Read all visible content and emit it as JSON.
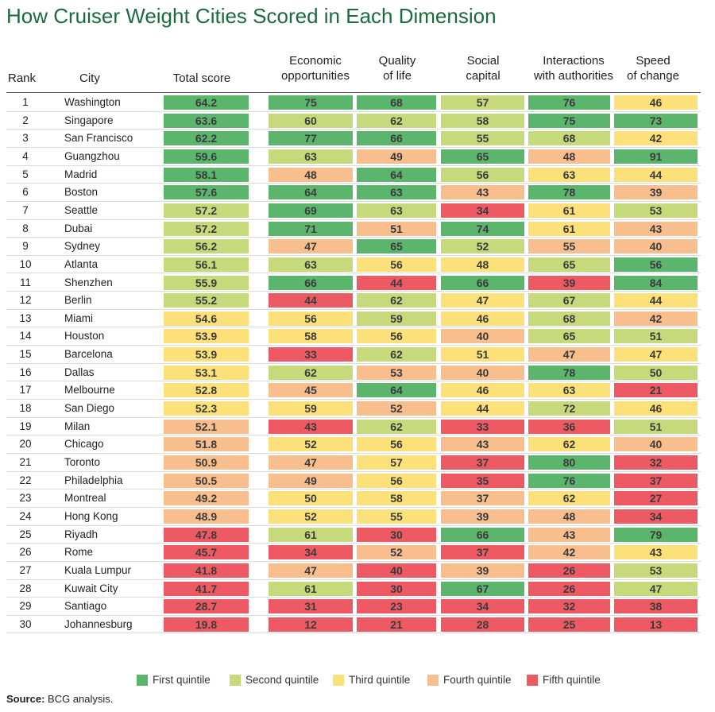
{
  "chart_data": {
    "type": "table",
    "title": "How Cruiser Weight Cities Scored in Each Dimension",
    "columns": [
      {
        "key": "rank",
        "label": [
          "Rank"
        ]
      },
      {
        "key": "city",
        "label": [
          "City"
        ]
      },
      {
        "key": "total",
        "label": [
          "Total score"
        ]
      },
      {
        "key": "economic",
        "label": [
          "Economic",
          "opportunities"
        ]
      },
      {
        "key": "quality",
        "label": [
          "Quality",
          "of life"
        ]
      },
      {
        "key": "social",
        "label": [
          "Social",
          "capital"
        ]
      },
      {
        "key": "authorities",
        "label": [
          "Interactions",
          "with authorities"
        ]
      },
      {
        "key": "speed",
        "label": [
          "Speed",
          "of change"
        ]
      }
    ],
    "rows": [
      {
        "rank": 1,
        "city": "Washington",
        "total": 64.2,
        "economic": 75,
        "quality": 68,
        "social": 57,
        "authorities": 76,
        "speed": 46,
        "q": [
          1,
          1,
          1,
          2,
          1,
          3
        ]
      },
      {
        "rank": 2,
        "city": "Singapore",
        "total": 63.6,
        "economic": 60,
        "quality": 62,
        "social": 58,
        "authorities": 75,
        "speed": 73,
        "q": [
          1,
          2,
          2,
          2,
          1,
          1
        ]
      },
      {
        "rank": 3,
        "city": "San Francisco",
        "total": 62.2,
        "economic": 77,
        "quality": 66,
        "social": 55,
        "authorities": 68,
        "speed": 42,
        "q": [
          1,
          1,
          1,
          2,
          2,
          3
        ]
      },
      {
        "rank": 4,
        "city": "Guangzhou",
        "total": 59.6,
        "economic": 63,
        "quality": 49,
        "social": 65,
        "authorities": 48,
        "speed": 91,
        "q": [
          1,
          2,
          4,
          1,
          4,
          1
        ]
      },
      {
        "rank": 5,
        "city": "Madrid",
        "total": 58.1,
        "economic": 48,
        "quality": 64,
        "social": 56,
        "authorities": 63,
        "speed": 44,
        "q": [
          1,
          4,
          1,
          2,
          3,
          3
        ]
      },
      {
        "rank": 6,
        "city": "Boston",
        "total": 57.6,
        "economic": 64,
        "quality": 63,
        "social": 43,
        "authorities": 78,
        "speed": 39,
        "q": [
          1,
          1,
          1,
          4,
          1,
          4
        ]
      },
      {
        "rank": 7,
        "city": "Seattle",
        "total": 57.2,
        "economic": 69,
        "quality": 63,
        "social": 34,
        "authorities": 61,
        "speed": 53,
        "q": [
          2,
          1,
          2,
          5,
          3,
          2
        ]
      },
      {
        "rank": 8,
        "city": "Dubai",
        "total": 57.2,
        "economic": 71,
        "quality": 51,
        "social": 74,
        "authorities": 61,
        "speed": 43,
        "q": [
          2,
          1,
          4,
          1,
          3,
          4
        ]
      },
      {
        "rank": 9,
        "city": "Sydney",
        "total": 56.2,
        "economic": 47,
        "quality": 65,
        "social": 52,
        "authorities": 55,
        "speed": 40,
        "q": [
          2,
          4,
          1,
          2,
          4,
          4
        ]
      },
      {
        "rank": 10,
        "city": "Atlanta",
        "total": 56.1,
        "economic": 63,
        "quality": 56,
        "social": 48,
        "authorities": 65,
        "speed": 56,
        "q": [
          2,
          2,
          3,
          3,
          2,
          1
        ]
      },
      {
        "rank": 11,
        "city": "Shenzhen",
        "total": 55.9,
        "economic": 66,
        "quality": 44,
        "social": 66,
        "authorities": 39,
        "speed": 84,
        "q": [
          2,
          1,
          5,
          1,
          5,
          1
        ]
      },
      {
        "rank": 12,
        "city": "Berlin",
        "total": 55.2,
        "economic": 44,
        "quality": 62,
        "social": 47,
        "authorities": 67,
        "speed": 44,
        "q": [
          2,
          5,
          2,
          3,
          2,
          3
        ]
      },
      {
        "rank": 13,
        "city": "Miami",
        "total": 54.6,
        "economic": 56,
        "quality": 59,
        "social": 46,
        "authorities": 68,
        "speed": 42,
        "q": [
          3,
          3,
          2,
          3,
          2,
          4
        ]
      },
      {
        "rank": 14,
        "city": "Houston",
        "total": 53.9,
        "economic": 58,
        "quality": 56,
        "social": 40,
        "authorities": 65,
        "speed": 51,
        "q": [
          3,
          3,
          3,
          4,
          2,
          2
        ]
      },
      {
        "rank": 15,
        "city": "Barcelona",
        "total": 53.9,
        "economic": 33,
        "quality": 62,
        "social": 51,
        "authorities": 47,
        "speed": 47,
        "q": [
          3,
          5,
          2,
          3,
          4,
          3
        ]
      },
      {
        "rank": 16,
        "city": "Dallas",
        "total": 53.1,
        "economic": 62,
        "quality": 53,
        "social": 40,
        "authorities": 78,
        "speed": 50,
        "q": [
          3,
          2,
          4,
          4,
          1,
          2
        ]
      },
      {
        "rank": 17,
        "city": "Melbourne",
        "total": 52.8,
        "economic": 45,
        "quality": 64,
        "social": 46,
        "authorities": 63,
        "speed": 21,
        "q": [
          3,
          4,
          1,
          3,
          3,
          5
        ]
      },
      {
        "rank": 18,
        "city": "San Diego",
        "total": 52.3,
        "economic": 59,
        "quality": 52,
        "social": 44,
        "authorities": 72,
        "speed": 46,
        "q": [
          3,
          3,
          4,
          3,
          2,
          3
        ]
      },
      {
        "rank": 19,
        "city": "Milan",
        "total": 52.1,
        "economic": 43,
        "quality": 62,
        "social": 33,
        "authorities": 36,
        "speed": 51,
        "q": [
          4,
          5,
          2,
          5,
          5,
          2
        ]
      },
      {
        "rank": 20,
        "city": "Chicago",
        "total": 51.8,
        "economic": 52,
        "quality": 56,
        "social": 43,
        "authorities": 62,
        "speed": 40,
        "q": [
          4,
          3,
          3,
          4,
          3,
          4
        ]
      },
      {
        "rank": 21,
        "city": "Toronto",
        "total": 50.9,
        "economic": 47,
        "quality": 57,
        "social": 37,
        "authorities": 80,
        "speed": 32,
        "q": [
          4,
          4,
          3,
          5,
          1,
          5
        ]
      },
      {
        "rank": 22,
        "city": "Philadelphia",
        "total": 50.5,
        "economic": 49,
        "quality": 56,
        "social": 35,
        "authorities": 76,
        "speed": 37,
        "q": [
          4,
          4,
          3,
          5,
          1,
          5
        ]
      },
      {
        "rank": 23,
        "city": "Montreal",
        "total": 49.2,
        "economic": 50,
        "quality": 58,
        "social": 37,
        "authorities": 62,
        "speed": 27,
        "q": [
          4,
          3,
          3,
          4,
          3,
          5
        ]
      },
      {
        "rank": 24,
        "city": "Hong Kong",
        "total": 48.9,
        "economic": 52,
        "quality": 55,
        "social": 39,
        "authorities": 48,
        "speed": 34,
        "q": [
          4,
          3,
          3,
          4,
          4,
          5
        ]
      },
      {
        "rank": 25,
        "city": "Riyadh",
        "total": 47.8,
        "economic": 61,
        "quality": 30,
        "social": 66,
        "authorities": 43,
        "speed": 79,
        "q": [
          5,
          2,
          5,
          1,
          4,
          1
        ]
      },
      {
        "rank": 26,
        "city": "Rome",
        "total": 45.7,
        "economic": 34,
        "quality": 52,
        "social": 37,
        "authorities": 42,
        "speed": 43,
        "q": [
          5,
          5,
          4,
          5,
          4,
          3
        ]
      },
      {
        "rank": 27,
        "city": "Kuala Lumpur",
        "total": 41.8,
        "economic": 47,
        "quality": 40,
        "social": 39,
        "authorities": 26,
        "speed": 53,
        "q": [
          5,
          4,
          5,
          4,
          5,
          2
        ]
      },
      {
        "rank": 28,
        "city": "Kuwait City",
        "total": 41.7,
        "economic": 61,
        "quality": 30,
        "social": 67,
        "authorities": 26,
        "speed": 47,
        "q": [
          5,
          2,
          5,
          1,
          5,
          2
        ]
      },
      {
        "rank": 29,
        "city": "Santiago",
        "total": 28.7,
        "economic": 31,
        "quality": 23,
        "social": 34,
        "authorities": 32,
        "speed": 38,
        "q": [
          5,
          5,
          5,
          5,
          5,
          5
        ]
      },
      {
        "rank": 30,
        "city": "Johannesburg",
        "total": 19.8,
        "economic": 12,
        "quality": 21,
        "social": 28,
        "authorities": 25,
        "speed": 13,
        "q": [
          5,
          5,
          5,
          5,
          5,
          5
        ]
      }
    ],
    "legend": [
      {
        "label": "First quintile",
        "color": "#5cb56d"
      },
      {
        "label": "Second quintile",
        "color": "#c6d97b"
      },
      {
        "label": "Third quintile",
        "color": "#fce17a"
      },
      {
        "label": "Fourth quintile",
        "color": "#f8be8d"
      },
      {
        "label": "Fifth quintile",
        "color": "#ee5a63"
      }
    ]
  },
  "source": {
    "label": "Source:",
    "text": "BCG analysis."
  },
  "colors": {
    "title": "#1b6b3d"
  }
}
